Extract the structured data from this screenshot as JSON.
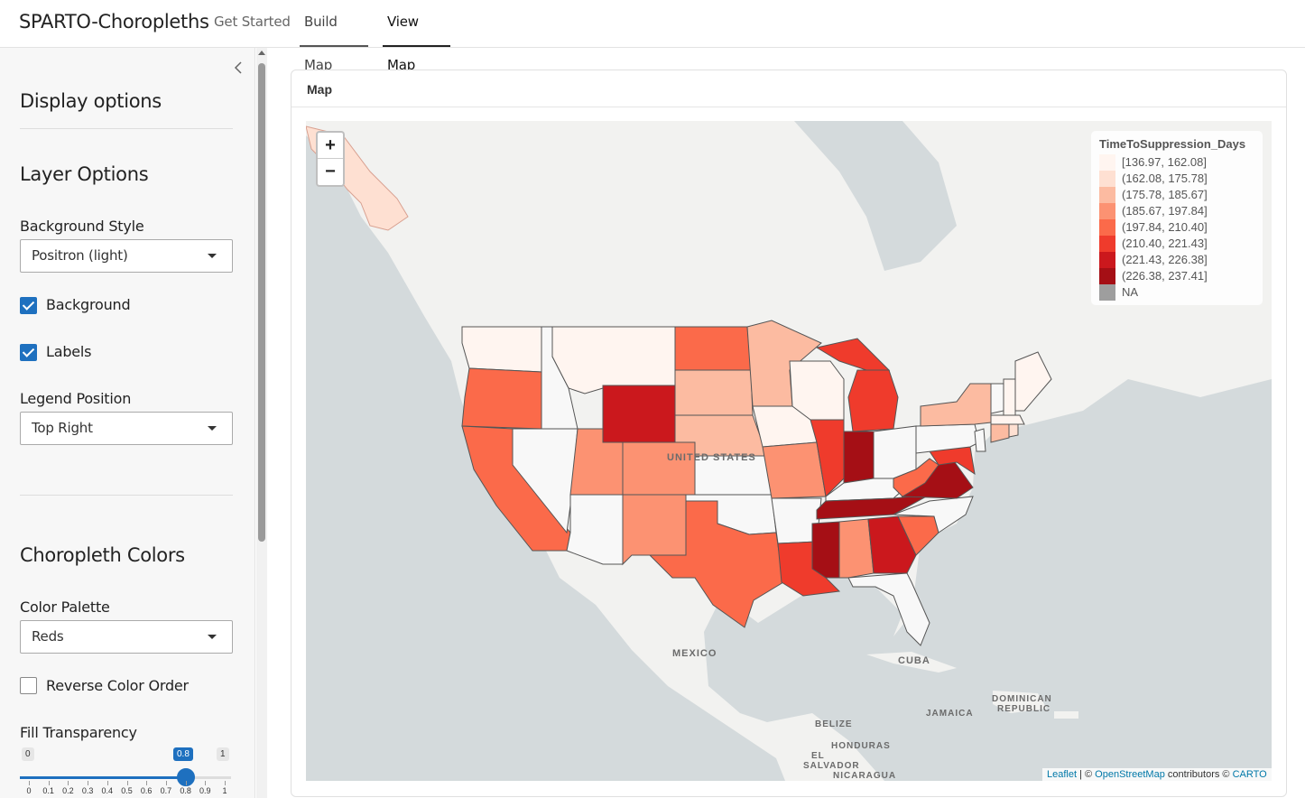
{
  "app": {
    "title": "SPARTO-Choropleths",
    "tabs": [
      "Get Started",
      "Build Map",
      "View Map"
    ]
  },
  "sidebar": {
    "display_options_title": "Display options",
    "layer_options_title": "Layer Options",
    "background_style_label": "Background Style",
    "background_style_value": "Positron (light)",
    "background_checkbox_label": "Background",
    "background_checked": true,
    "labels_checkbox_label": "Labels",
    "labels_checked": true,
    "legend_position_label": "Legend Position",
    "legend_position_value": "Top Right",
    "choropleth_colors_title": "Choropleth Colors",
    "color_palette_label": "Color Palette",
    "color_palette_value": "Reds",
    "reverse_color_label": "Reverse Color Order",
    "reverse_checked": false,
    "fill_transparency_label": "Fill Transparency",
    "slider": {
      "min": "0",
      "max": "1",
      "value": "0.8",
      "value_fraction": 0.8,
      "ticks": [
        "0",
        "0.1",
        "0.2",
        "0.3",
        "0.4",
        "0.5",
        "0.6",
        "0.7",
        "0.8",
        "0.9",
        "1"
      ]
    }
  },
  "map_card": {
    "title": "Map",
    "zoom_in": "+",
    "zoom_out": "−",
    "legend": {
      "title": "TimeToSuppression_Days",
      "items": [
        {
          "label": "[136.97, 162.08]",
          "color": "#fff5f0"
        },
        {
          "label": "(162.08, 175.78]",
          "color": "#fee0d2"
        },
        {
          "label": "(175.78, 185.67]",
          "color": "#fcbba1"
        },
        {
          "label": "(185.67, 197.84]",
          "color": "#fc9272"
        },
        {
          "label": "(197.84, 210.40]",
          "color": "#fb6a4a"
        },
        {
          "label": "(210.40, 221.43]",
          "color": "#ef3b2c"
        },
        {
          "label": "(221.43, 226.38]",
          "color": "#cb181d"
        },
        {
          "label": "(226.38, 237.41]",
          "color": "#a50f15"
        },
        {
          "label": "NA",
          "color": "#9e9e9e"
        }
      ]
    },
    "labels": {
      "us": "UNITED STATES",
      "mexico": "MEXICO",
      "cuba": "CUBA",
      "dominican1": "DOMINICAN",
      "dominican2": "REPUBLIC",
      "jamaica": "JAMAICA",
      "belize": "BELIZE",
      "honduras": "HONDURAS",
      "el": "EL",
      "salvador": "SALVADOR",
      "nicaragua": "NICARAGUA"
    },
    "attribution": {
      "leaflet": "Leaflet",
      "sep": " | © ",
      "osm": "OpenStreetMap",
      "contrib": " contributors © ",
      "carto": "CARTO"
    }
  }
}
